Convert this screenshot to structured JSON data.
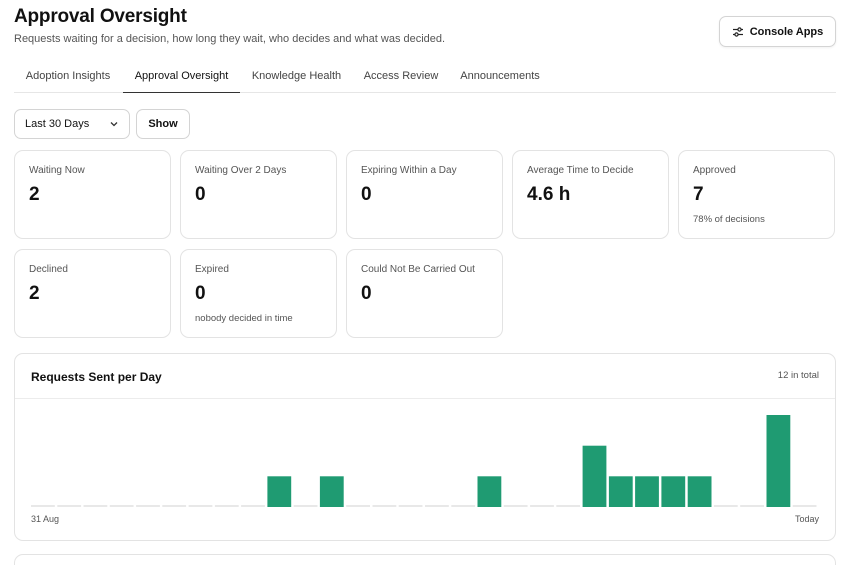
{
  "header": {
    "title": "Approval Oversight",
    "subtitle": "Requests waiting for a decision, how long they wait, who decides and what was decided.",
    "console_button": {
      "label": "Console Apps",
      "icon": "sliders-icon"
    }
  },
  "tabs": [
    {
      "label": "Adoption Insights",
      "active": false
    },
    {
      "label": "Approval Oversight",
      "active": true
    },
    {
      "label": "Knowledge Health",
      "active": false
    },
    {
      "label": "Access Review",
      "active": false
    },
    {
      "label": "Announcements",
      "active": false
    }
  ],
  "filters": {
    "range_value": "Last 30 Days",
    "show_label": "Show"
  },
  "stats": [
    {
      "label": "Waiting Now",
      "value": "2",
      "sub": ""
    },
    {
      "label": "Waiting Over 2 Days",
      "value": "0",
      "sub": ""
    },
    {
      "label": "Expiring Within a Day",
      "value": "0",
      "sub": ""
    },
    {
      "label": "Average Time to Decide",
      "value": "4.6 h",
      "sub": ""
    },
    {
      "label": "Approved",
      "value": "7",
      "sub": "78% of decisions"
    },
    {
      "label": "Declined",
      "value": "2",
      "sub": ""
    },
    {
      "label": "Expired",
      "value": "0",
      "sub": "nobody decided in time"
    },
    {
      "label": "Could Not Be Carried Out",
      "value": "0",
      "sub": ""
    }
  ],
  "chart": {
    "title": "Requests Sent per Day",
    "total": "12 in total",
    "x_start": "31 Aug",
    "x_end": "Today"
  },
  "chart_data": {
    "type": "bar",
    "title": "Requests Sent per Day",
    "x_first_label": "31 Aug",
    "x_last_label": "Today",
    "values": [
      0,
      0,
      0,
      0,
      0,
      0,
      0,
      0,
      0,
      1,
      0,
      1,
      0,
      0,
      0,
      0,
      0,
      1,
      0,
      0,
      0,
      2,
      1,
      1,
      1,
      1,
      0,
      0,
      3,
      0
    ],
    "ylim": [
      0,
      3
    ],
    "bar_color": "#1f9b72",
    "empty_color": "#e8e8e8"
  },
  "colors": {
    "accent": "#1f9b72",
    "border": "#e3e3e3"
  }
}
